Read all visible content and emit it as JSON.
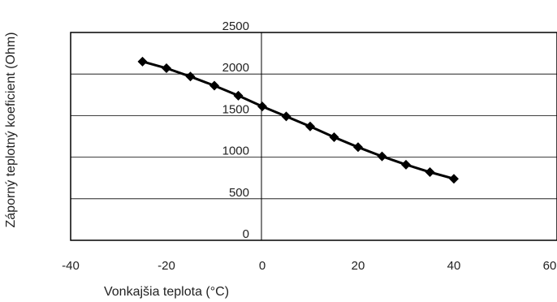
{
  "chart_data": {
    "type": "line",
    "xlabel": "Vonkajšia teplota (°C)",
    "ylabel": "Záporný teplotný koeficient (Ohm)",
    "xlim": [
      -40,
      60
    ],
    "ylim": [
      0,
      2500
    ],
    "x_ticks": [
      -40,
      -20,
      0,
      20,
      40,
      60
    ],
    "x_tick_labels": [
      "-40",
      "-20",
      "0",
      "20",
      "40",
      "60"
    ],
    "y_ticks": [
      0,
      500,
      1000,
      1500,
      2000,
      2500
    ],
    "y_tick_labels": [
      "0",
      "500",
      "1000",
      "1500",
      "2000",
      "2500"
    ],
    "grid": "horizontal",
    "legend": "none",
    "colors": {
      "line": "#000000",
      "marker": "#000000",
      "grid": "#000000"
    },
    "marker": "diamond",
    "series": [
      {
        "x": [
          -25,
          -20,
          -15,
          -10,
          -5,
          0,
          5,
          10,
          15,
          20,
          25,
          30,
          35,
          40
        ],
        "values": [
          2150,
          2070,
          1970,
          1860,
          1740,
          1610,
          1490,
          1370,
          1240,
          1120,
          1010,
          910,
          820,
          740
        ]
      }
    ]
  }
}
